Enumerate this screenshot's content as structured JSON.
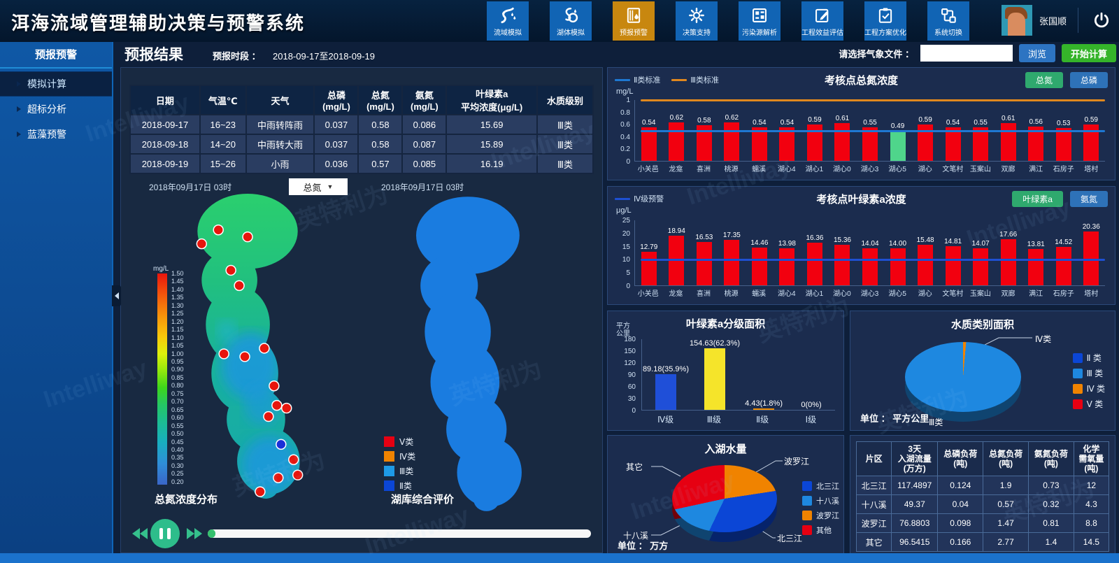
{
  "app": {
    "title": "洱海流域管理辅助决策与预警系统",
    "user_name": "张国顺"
  },
  "nav": {
    "items": [
      {
        "label": "流域模拟",
        "icon": "river-icon",
        "active": false
      },
      {
        "label": "湖体模拟",
        "icon": "lake-icon",
        "active": false
      },
      {
        "label": "预报预警",
        "icon": "forecast-warning-icon",
        "active": true
      },
      {
        "label": "决策支持",
        "icon": "decision-icon",
        "active": false
      },
      {
        "label": "污染源解析",
        "icon": "pollution-grid-icon",
        "active": false
      },
      {
        "label": "工程效益评估",
        "icon": "edit-doc-icon",
        "active": false
      },
      {
        "label": "工程方案优化",
        "icon": "clipboard-check-icon",
        "active": false
      },
      {
        "label": "系统切换",
        "icon": "system-switch-icon",
        "active": false
      }
    ]
  },
  "sidebar": {
    "title": "预报预警",
    "items": [
      {
        "label": "模拟计算",
        "active": true
      },
      {
        "label": "超标分析",
        "active": false
      },
      {
        "label": "蓝藻预警",
        "active": false
      }
    ]
  },
  "toolbar": {
    "page_title": "预报结果",
    "period_label": "预报时段 ：",
    "period_value": "2018-09-17至2018-09-19",
    "weather_file_label": "请选择气象文件 ：",
    "weather_file_value": "",
    "browse_label": "浏览",
    "start_label": "开始计算"
  },
  "forecast_table": {
    "headers": [
      "日期",
      "气温℃",
      "天气",
      "总磷\n(mg/L)",
      "总氮\n(mg/L)",
      "氨氮\n(mg/L)",
      "叶绿素a\n平均浓度(μg/L)",
      "水质级别"
    ],
    "rows": [
      [
        "2018-09-17",
        "16~23",
        "中雨转阵雨",
        "0.037",
        "0.58",
        "0.086",
        "15.69",
        "Ⅲ类"
      ],
      [
        "2018-09-18",
        "14~20",
        "中雨转大雨",
        "0.037",
        "0.58",
        "0.087",
        "15.89",
        "Ⅲ类"
      ],
      [
        "2018-09-19",
        "15~26",
        "小雨",
        "0.036",
        "0.57",
        "0.085",
        "16.19",
        "Ⅲ类"
      ]
    ]
  },
  "maps": {
    "left": {
      "date": "2018年09月17日 03时",
      "dropdown_value": "总氮",
      "caption": "总氮浓度分布",
      "scale_unit": "mg/L",
      "scale_ticks": [
        "1.50",
        "1.45",
        "1.40",
        "1.35",
        "1.30",
        "1.25",
        "1.20",
        "1.15",
        "1.10",
        "1.05",
        "1.00",
        "0.95",
        "0.90",
        "0.85",
        "0.80",
        "0.75",
        "0.70",
        "0.65",
        "0.60",
        "0.55",
        "0.50",
        "0.45",
        "0.40",
        "0.35",
        "0.30",
        "0.25",
        "0.20"
      ]
    },
    "right": {
      "date": "2018年09月17日 03时",
      "caption": "湖库综合评价",
      "legend": [
        {
          "label": "Ⅴ类",
          "color": "#e60012"
        },
        {
          "label": "Ⅳ类",
          "color": "#f08300"
        },
        {
          "label": "Ⅲ类",
          "color": "#1e9ae6"
        },
        {
          "label": "Ⅱ类",
          "color": "#0b46d6"
        }
      ]
    }
  },
  "player": {
    "progress_percent": 2
  },
  "chart_data": [
    {
      "id": "tn_concentration",
      "type": "bar",
      "title": "考核点总氮浓度",
      "ylabel": "mg/L",
      "ylim": [
        0,
        1
      ],
      "yticks": [
        1,
        0.8,
        0.6,
        0.4,
        0.2,
        0
      ],
      "categories": [
        "小关邑",
        "龙龛",
        "喜洲",
        "桃源",
        "蠕溪",
        "湖心4",
        "湖心1",
        "湖心0",
        "湖心3",
        "湖心5",
        "湖心",
        "文笔村",
        "玉案山",
        "双廊",
        "满江",
        "石房子",
        "塔村"
      ],
      "values": [
        "0.54",
        "0.62",
        "0.58",
        "0.62",
        "0.54",
        "0.54",
        "0.59",
        "0.61",
        "0.55",
        "0.49",
        "0.59",
        "0.54",
        "0.55",
        "0.61",
        "0.56",
        "0.53",
        "0.59"
      ],
      "bar_color": "#f2000f",
      "highlight_index": 9,
      "highlight_color": "#4fd58b",
      "ref_lines": [
        {
          "label": "Ⅱ类标准",
          "value": 0.5,
          "color": "#1e78d2"
        },
        {
          "label": "Ⅲ类标准",
          "value": 1.0,
          "color": "#e0881e"
        }
      ],
      "buttons": [
        {
          "label": "总氮",
          "color": "#2fa96e"
        },
        {
          "label": "总磷",
          "color": "#2e72b8"
        }
      ]
    },
    {
      "id": "chla_concentration",
      "type": "bar",
      "title": "考核点叶绿素a浓度",
      "ylabel": "μg/L",
      "ylim": [
        0,
        25
      ],
      "yticks": [
        25,
        20,
        15,
        10,
        5,
        0
      ],
      "categories": [
        "小关邑",
        "龙龛",
        "喜洲",
        "桃源",
        "蠕溪",
        "湖心4",
        "湖心1",
        "湖心0",
        "湖心3",
        "湖心5",
        "湖心",
        "文笔村",
        "玉案山",
        "双廊",
        "满江",
        "石房子",
        "塔村"
      ],
      "values": [
        "12.79",
        "18.94",
        "16.53",
        "17.35",
        "14.46",
        "13.98",
        "16.36",
        "15.36",
        "14.04",
        "14.00",
        "15.48",
        "14.81",
        "14.07",
        "17.66",
        "13.81",
        "14.52",
        "20.36"
      ],
      "bar_color": "#f2000f",
      "ref_lines": [
        {
          "label": "Ⅳ级预警",
          "value": 10,
          "color": "#1e50d2"
        }
      ],
      "buttons": [
        {
          "label": "叶绿素a",
          "color": "#2fa96e"
        },
        {
          "label": "氨氮",
          "color": "#2e72b8"
        }
      ]
    },
    {
      "id": "chla_area",
      "type": "bar",
      "title": "叶绿素a分级面积",
      "ylabel": "平方公里",
      "ylim": [
        0,
        180
      ],
      "yticks": [
        180,
        150,
        120,
        90,
        60,
        30,
        0
      ],
      "categories": [
        "Ⅳ级",
        "Ⅲ级",
        "Ⅱ级",
        "Ⅰ级"
      ],
      "values": [
        "89.18",
        "154.63",
        "4.43",
        "0"
      ],
      "value_labels": [
        "89.18(35.9%)",
        "154.63(62.3%)",
        "4.43(1.8%)",
        "0(0%)"
      ],
      "bar_colors": [
        "#1f4fd8",
        "#f5e42a",
        "#ef8c00",
        "#ef8c00"
      ],
      "ref_lines": [],
      "buttons": []
    },
    {
      "id": "water_quality_area",
      "type": "pie",
      "title": "水质类别面积",
      "unit_label": "单位 ： 平方公里",
      "slices": [
        {
          "label": "Ⅳ类",
          "percent": 1.4,
          "color": "#f08300"
        },
        {
          "label": "Ⅲ类",
          "percent": 98.6,
          "color": "#1e88e0"
        }
      ],
      "callouts": [
        "Ⅳ类",
        "Ⅲ类"
      ],
      "legend": [
        {
          "label": "Ⅱ 类",
          "color": "#0b46d6"
        },
        {
          "label": "Ⅲ 类",
          "color": "#1e88e0"
        },
        {
          "label": "Ⅳ 类",
          "color": "#f08300"
        },
        {
          "label": "Ⅴ 类",
          "color": "#e60012"
        }
      ]
    },
    {
      "id": "inflow_volume",
      "type": "pie",
      "title": "入湖水量",
      "unit_label": "单位 ： 万方",
      "slices": [
        {
          "label": "波罗江",
          "percent": 22.6,
          "color": "#f08300"
        },
        {
          "label": "北三江",
          "percent": 34.5,
          "color": "#0b46d6"
        },
        {
          "label": "十八溪",
          "percent": 14.5,
          "color": "#1e88e0"
        },
        {
          "label": "其它",
          "percent": 28.4,
          "color": "#e60012"
        }
      ],
      "callouts": [
        "其它",
        "波罗江",
        "十八溪",
        "北三江"
      ],
      "legend": [
        {
          "label": "北三江",
          "color": "#0b46d6"
        },
        {
          "label": "十八溪",
          "color": "#1e88e0"
        },
        {
          "label": "波罗江",
          "color": "#f08300"
        },
        {
          "label": "其他",
          "color": "#e60012"
        }
      ]
    }
  ],
  "region_table": {
    "headers": [
      "片区",
      "3天\n入湖流量\n(万方)",
      "总磷负荷\n(吨)",
      "总氮负荷\n(吨)",
      "氨氮负荷\n(吨)",
      "化学\n需氧量\n(吨)"
    ],
    "rows": [
      [
        "北三江",
        "117.4897",
        "0.124",
        "1.9",
        "0.73",
        "12"
      ],
      [
        "十八溪",
        "49.37",
        "0.04",
        "0.57",
        "0.32",
        "4.3"
      ],
      [
        "波罗江",
        "76.8803",
        "0.098",
        "1.47",
        "0.81",
        "8.8"
      ],
      [
        "其它",
        "96.5415",
        "0.166",
        "2.77",
        "1.4",
        "14.5"
      ]
    ]
  },
  "watermark": {
    "texts": [
      "Intelliway",
      "英特利为"
    ]
  }
}
